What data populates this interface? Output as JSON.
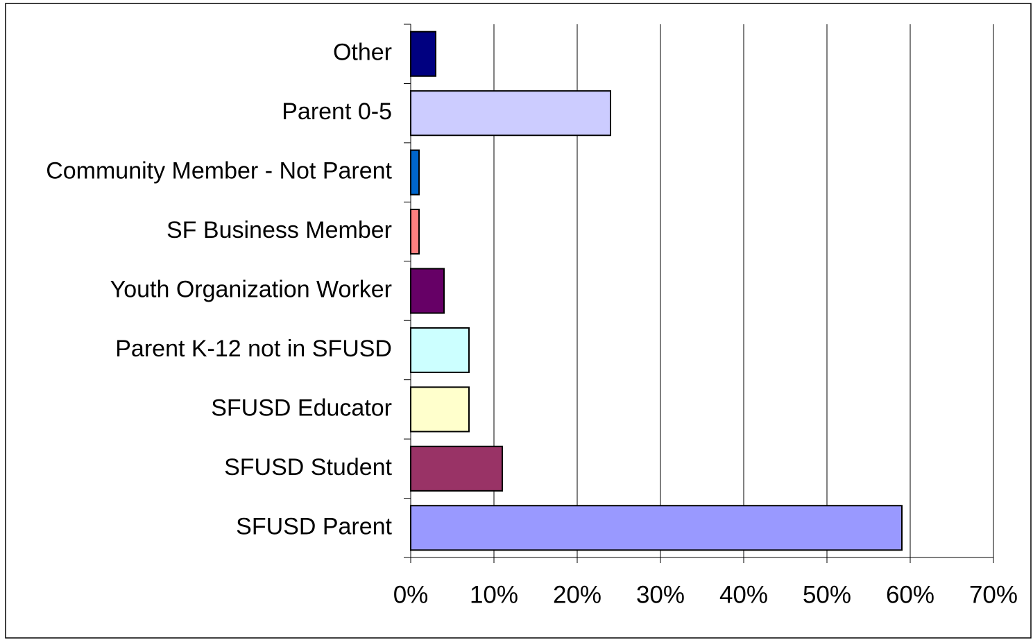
{
  "chart_data": {
    "type": "barh",
    "categories": [
      "Other",
      "Parent 0-5",
      "Community Member - Not Parent",
      "SF Business Member",
      "Youth Organization Worker",
      "Parent K-12 not in SFUSD",
      "SFUSD Educator",
      "SFUSD Student",
      "SFUSD Parent"
    ],
    "values": [
      3,
      24,
      1,
      1,
      4,
      7,
      7,
      11,
      59
    ],
    "colors": [
      "#000080",
      "#ccccff",
      "#0066cc",
      "#ff8080",
      "#660066",
      "#ccffff",
      "#ffffcc",
      "#993366",
      "#9999ff"
    ],
    "xlim": [
      0,
      70
    ],
    "xticks": [
      {
        "value": 0,
        "label": "0%"
      },
      {
        "value": 10,
        "label": "10%"
      },
      {
        "value": 20,
        "label": "20%"
      },
      {
        "value": 30,
        "label": "30%"
      },
      {
        "value": 40,
        "label": "40%"
      },
      {
        "value": 50,
        "label": "50%"
      },
      {
        "value": 60,
        "label": "60%"
      },
      {
        "value": 70,
        "label": "70%"
      }
    ],
    "grid": true
  }
}
